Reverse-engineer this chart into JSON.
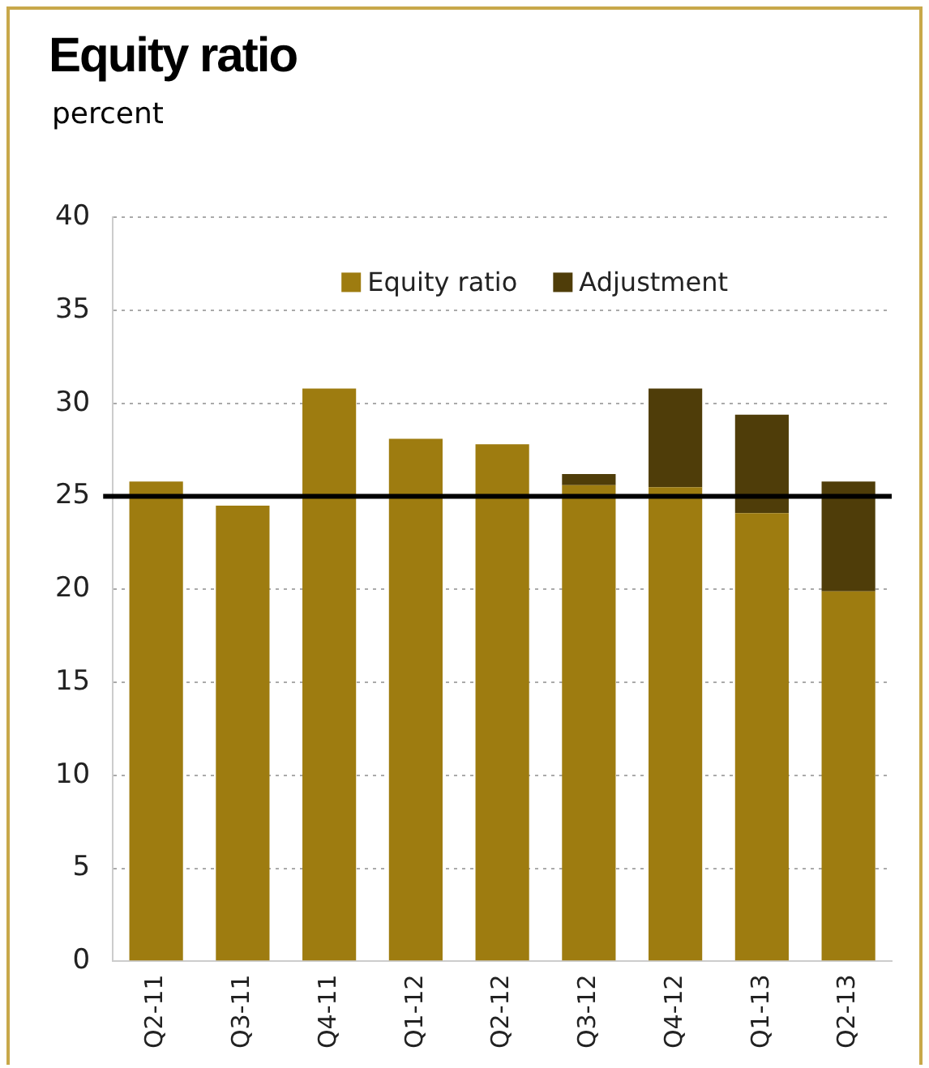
{
  "chart_data": {
    "type": "bar",
    "title": "Equity ratio",
    "subtitle": "percent",
    "stacked": true,
    "categories": [
      "Q2-11",
      "Q3-11",
      "Q4-11",
      "Q1-12",
      "Q2-12",
      "Q3-12",
      "Q4-12",
      "Q1-13",
      "Q2-13"
    ],
    "series": [
      {
        "name": "Equity ratio",
        "color": "#9e7c10",
        "values": [
          25.8,
          24.5,
          30.8,
          28.1,
          27.8,
          25.6,
          25.5,
          24.1,
          19.9
        ]
      },
      {
        "name": "Adjustment",
        "color": "#4f3d09",
        "values": [
          null,
          null,
          null,
          null,
          null,
          0.6,
          5.3,
          5.3,
          5.9
        ]
      }
    ],
    "ylim": [
      0,
      40
    ],
    "yticks": [
      0,
      5,
      10,
      15,
      20,
      25,
      30,
      35,
      40
    ],
    "grid": "y",
    "legend": "top",
    "ref_lines": [
      {
        "axis": "y",
        "value": 25,
        "color": "#000000"
      }
    ]
  }
}
